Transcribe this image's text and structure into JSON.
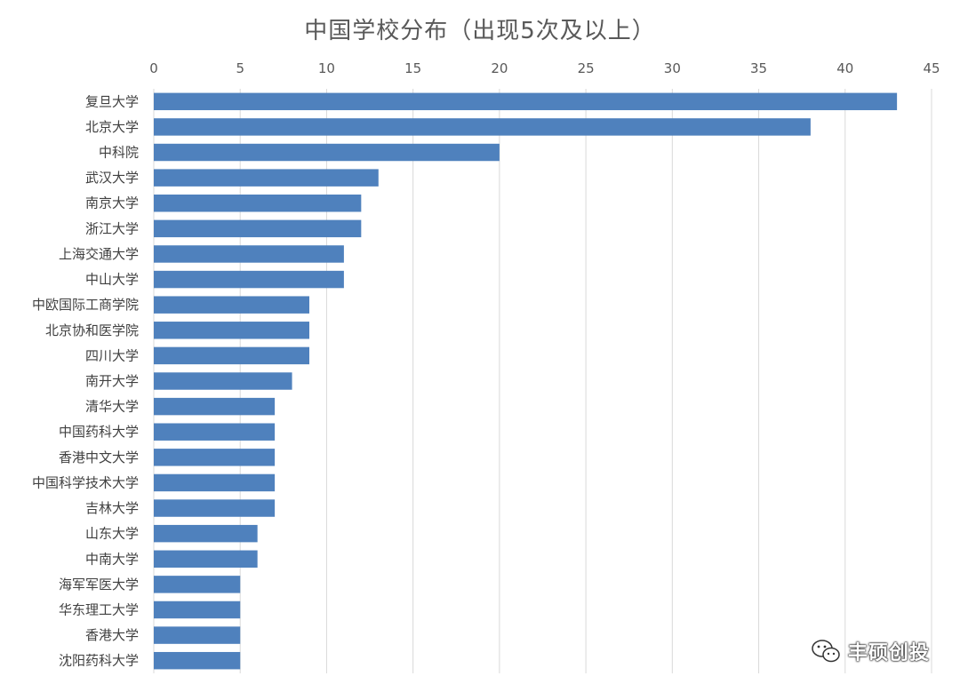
{
  "chart_data": {
    "type": "bar",
    "orientation": "horizontal",
    "title": "中国学校分布（出现5次及以上）",
    "xlim": [
      0,
      45
    ],
    "x_ticks": [
      0,
      5,
      10,
      15,
      20,
      25,
      30,
      35,
      40,
      45
    ],
    "x_axis_position": "top",
    "grid": true,
    "bar_color": "#4F81BD",
    "categories": [
      "复旦大学",
      "北京大学",
      "中科院",
      "武汉大学",
      "南京大学",
      "浙江大学",
      "上海交通大学",
      "中山大学",
      "中欧国际工商学院",
      "北京协和医学院",
      "四川大学",
      "南开大学",
      "清华大学",
      "中国药科大学",
      "香港中文大学",
      "中国科学技术大学",
      "吉林大学",
      "山东大学",
      "中南大学",
      "海军军医大学",
      "华东理工大学",
      "香港大学",
      "沈阳药科大学"
    ],
    "values": [
      43,
      38,
      20,
      13,
      12,
      12,
      11,
      11,
      9,
      9,
      9,
      8,
      7,
      7,
      7,
      7,
      7,
      6,
      6,
      5,
      5,
      5,
      5
    ]
  },
  "watermark": {
    "text": "丰硕创投",
    "icon": "wechat-icon"
  }
}
